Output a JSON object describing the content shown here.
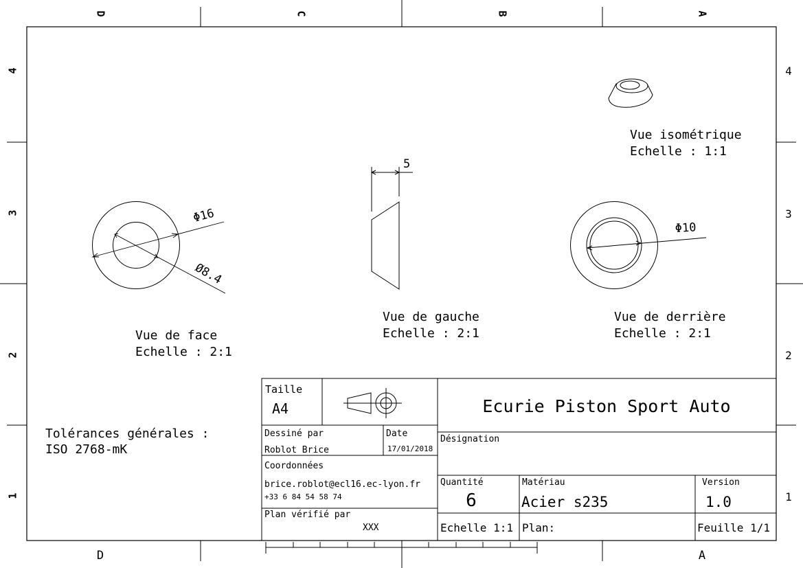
{
  "frame": {
    "col_labels_top": [
      "D",
      "C",
      "B",
      "A"
    ],
    "col_labels_bottom": [
      "D",
      "A"
    ],
    "row_labels": [
      "4",
      "3",
      "2",
      "1"
    ]
  },
  "views": {
    "front": {
      "title": "Vue de face",
      "scale": "Echelle :  2:1",
      "dim_outer": "Φ16",
      "dim_inner": "Ø8.4"
    },
    "left": {
      "title": "Vue de gauche",
      "scale": "Echelle :  2:1",
      "dim_width": "5"
    },
    "rear": {
      "title": "Vue de derrière",
      "scale": "Echelle :  2:1",
      "dim_diam": "Φ10"
    },
    "iso": {
      "title": "Vue isométrique",
      "scale": "Echelle :  1:1"
    }
  },
  "tolerances": {
    "line1": "Tolérances générales :",
    "line2": "ISO 2768-mK"
  },
  "title_block": {
    "size_label": "Taille",
    "size_value": "A4",
    "company": "Ecurie Piston Sport Auto",
    "drawn_by_label": "Dessiné par",
    "drawn_by_value": "Roblot Brice",
    "date_label": "Date",
    "date_value": "17/01/2018",
    "contact_label": "Coordonnées",
    "email": "brice.roblot@ecl16.ec-lyon.fr",
    "phone": "+33 6 84 54 58 74",
    "checked_label": "Plan vérifié par",
    "checked_value": "XXX",
    "designation_label": "Désignation",
    "designation_value": "",
    "quantity_label": "Quantité",
    "quantity_value": "6",
    "material_label": "Matériau",
    "material_value": "Acier s235",
    "version_label": "Version",
    "version_value": "1.0",
    "scale_text": "Echelle 1:1",
    "plan_text": "Plan:",
    "sheet_text": "Feuille 1/1"
  }
}
